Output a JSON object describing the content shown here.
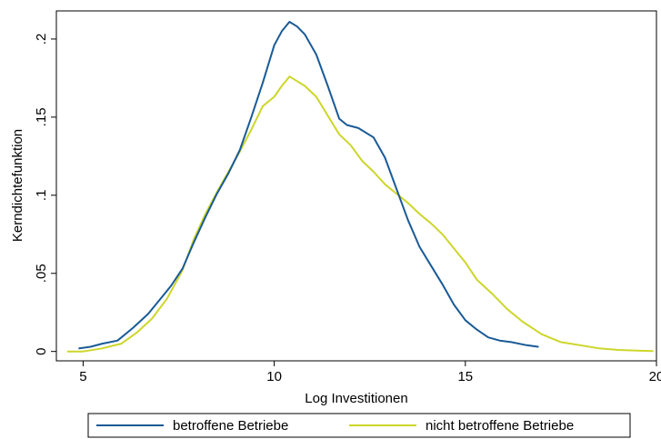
{
  "chart_data": {
    "type": "line",
    "title": "",
    "xlabel": "Log Investitionen",
    "ylabel": "Kerndichtefunktion",
    "xlim": [
      4.3,
      20
    ],
    "ylim": [
      -0.006,
      0.218
    ],
    "xticks": [
      5,
      10,
      15,
      20
    ],
    "xtick_labels": [
      "5",
      "10",
      "15",
      "20"
    ],
    "yticks": [
      0,
      0.05,
      0.1,
      0.15,
      0.2
    ],
    "ytick_labels": [
      "0",
      ".05",
      ".1",
      ".15",
      ".2"
    ],
    "grid": false,
    "legend_position": "bottom",
    "series": [
      {
        "name": "betroffene Betriebe",
        "color": "#1a5a96",
        "points": [
          [
            4.9,
            0.002
          ],
          [
            5.2,
            0.003
          ],
          [
            5.5,
            0.005
          ],
          [
            5.9,
            0.007
          ],
          [
            6.3,
            0.015
          ],
          [
            6.7,
            0.024
          ],
          [
            7.0,
            0.033
          ],
          [
            7.3,
            0.042
          ],
          [
            7.6,
            0.053
          ],
          [
            7.9,
            0.07
          ],
          [
            8.2,
            0.086
          ],
          [
            8.5,
            0.101
          ],
          [
            8.8,
            0.114
          ],
          [
            9.1,
            0.129
          ],
          [
            9.4,
            0.15
          ],
          [
            9.7,
            0.172
          ],
          [
            10.0,
            0.196
          ],
          [
            10.2,
            0.205
          ],
          [
            10.4,
            0.211
          ],
          [
            10.6,
            0.208
          ],
          [
            10.8,
            0.203
          ],
          [
            11.1,
            0.19
          ],
          [
            11.4,
            0.17
          ],
          [
            11.7,
            0.149
          ],
          [
            11.9,
            0.145
          ],
          [
            12.2,
            0.143
          ],
          [
            12.6,
            0.137
          ],
          [
            12.9,
            0.124
          ],
          [
            13.2,
            0.104
          ],
          [
            13.5,
            0.084
          ],
          [
            13.8,
            0.067
          ],
          [
            14.1,
            0.055
          ],
          [
            14.4,
            0.043
          ],
          [
            14.7,
            0.03
          ],
          [
            15.0,
            0.02
          ],
          [
            15.3,
            0.014
          ],
          [
            15.6,
            0.009
          ],
          [
            15.9,
            0.007
          ],
          [
            16.2,
            0.006
          ],
          [
            16.6,
            0.004
          ],
          [
            16.9,
            0.003
          ]
        ]
      },
      {
        "name": "nicht betroffene Betriebe",
        "color": "#cdd62a",
        "points": [
          [
            4.6,
            0.0
          ],
          [
            5.0,
            0.0
          ],
          [
            5.5,
            0.002
          ],
          [
            6.0,
            0.005
          ],
          [
            6.4,
            0.012
          ],
          [
            6.8,
            0.021
          ],
          [
            7.2,
            0.034
          ],
          [
            7.6,
            0.052
          ],
          [
            7.9,
            0.072
          ],
          [
            8.2,
            0.088
          ],
          [
            8.5,
            0.102
          ],
          [
            8.8,
            0.115
          ],
          [
            9.1,
            0.128
          ],
          [
            9.4,
            0.142
          ],
          [
            9.7,
            0.157
          ],
          [
            10.0,
            0.163
          ],
          [
            10.2,
            0.17
          ],
          [
            10.4,
            0.176
          ],
          [
            10.6,
            0.173
          ],
          [
            10.8,
            0.17
          ],
          [
            11.1,
            0.163
          ],
          [
            11.4,
            0.151
          ],
          [
            11.7,
            0.139
          ],
          [
            12.0,
            0.132
          ],
          [
            12.3,
            0.122
          ],
          [
            12.6,
            0.115
          ],
          [
            12.9,
            0.107
          ],
          [
            13.2,
            0.101
          ],
          [
            13.5,
            0.095
          ],
          [
            13.8,
            0.088
          ],
          [
            14.1,
            0.082
          ],
          [
            14.4,
            0.075
          ],
          [
            14.7,
            0.066
          ],
          [
            15.0,
            0.057
          ],
          [
            15.3,
            0.046
          ],
          [
            15.7,
            0.037
          ],
          [
            16.1,
            0.027
          ],
          [
            16.5,
            0.019
          ],
          [
            17.0,
            0.011
          ],
          [
            17.5,
            0.006
          ],
          [
            18.0,
            0.004
          ],
          [
            18.5,
            0.002
          ],
          [
            19.0,
            0.001
          ],
          [
            19.5,
            0.0005
          ],
          [
            19.9,
            0.0003
          ]
        ]
      }
    ]
  }
}
